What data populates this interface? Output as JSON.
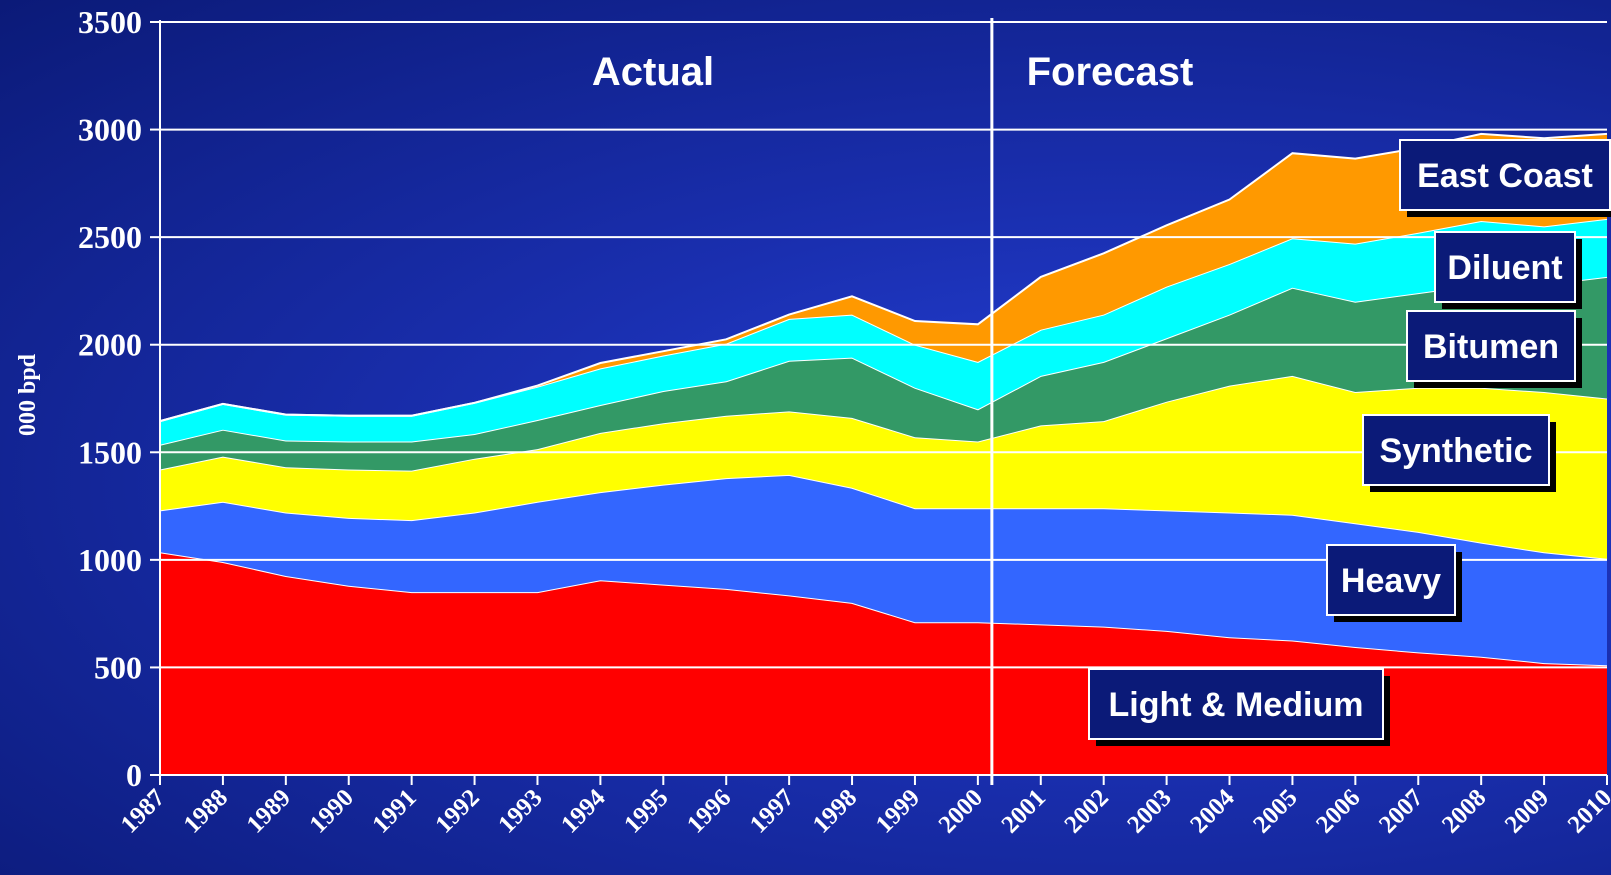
{
  "chart_data": {
    "type": "area",
    "stacked": true,
    "ylabel": "000 bpd",
    "ylim": [
      0,
      3500
    ],
    "yticks": [
      "0",
      "500",
      "1000",
      "1500",
      "2000",
      "2500",
      "3000",
      "3500"
    ],
    "x": [
      "1987",
      "1988",
      "1989",
      "1990",
      "1991",
      "1992",
      "1993",
      "1994",
      "1995",
      "1996",
      "1997",
      "1998",
      "1999",
      "2000",
      "2001",
      "2002",
      "2003",
      "2004",
      "2005",
      "2006",
      "2007",
      "2008",
      "2009",
      "2010"
    ],
    "grid": "horizontal",
    "annotations": {
      "actual": "Actual",
      "forecast": "Forecast",
      "divider_x": "2000"
    },
    "series": [
      {
        "name": "Light & Medium",
        "color": "#ff0000",
        "values": [
          1035,
          990,
          925,
          880,
          850,
          850,
          850,
          905,
          885,
          865,
          835,
          800,
          710,
          710,
          700,
          690,
          670,
          640,
          625,
          595,
          570,
          550,
          520,
          510
        ]
      },
      {
        "name": "Heavy",
        "color": "#3366ff",
        "values": [
          195,
          280,
          295,
          315,
          335,
          370,
          420,
          410,
          465,
          515,
          560,
          535,
          530,
          530,
          540,
          550,
          560,
          580,
          585,
          575,
          560,
          530,
          515,
          495
        ]
      },
      {
        "name": "Synthetic",
        "color": "#ffff00",
        "values": [
          190,
          210,
          210,
          225,
          230,
          250,
          245,
          275,
          285,
          290,
          295,
          325,
          330,
          310,
          385,
          405,
          505,
          590,
          645,
          610,
          670,
          720,
          745,
          745
        ]
      },
      {
        "name": "Bitumen",
        "color": "#339966",
        "values": [
          115,
          125,
          125,
          130,
          135,
          115,
          135,
          130,
          150,
          160,
          235,
          280,
          230,
          150,
          230,
          275,
          295,
          330,
          410,
          420,
          440,
          480,
          500,
          565
        ]
      },
      {
        "name": "Diluent",
        "color": "#00ffff",
        "values": [
          110,
          120,
          120,
          120,
          120,
          145,
          155,
          170,
          165,
          175,
          195,
          200,
          200,
          220,
          215,
          220,
          240,
          235,
          230,
          270,
          280,
          295,
          270,
          270
        ]
      },
      {
        "name": "East Coast",
        "color": "#ff9900",
        "values": [
          0,
          0,
          0,
          0,
          0,
          0,
          5,
          25,
          20,
          20,
          20,
          85,
          110,
          175,
          245,
          285,
          285,
          300,
          395,
          395,
          395,
          405,
          410,
          395
        ]
      }
    ]
  }
}
